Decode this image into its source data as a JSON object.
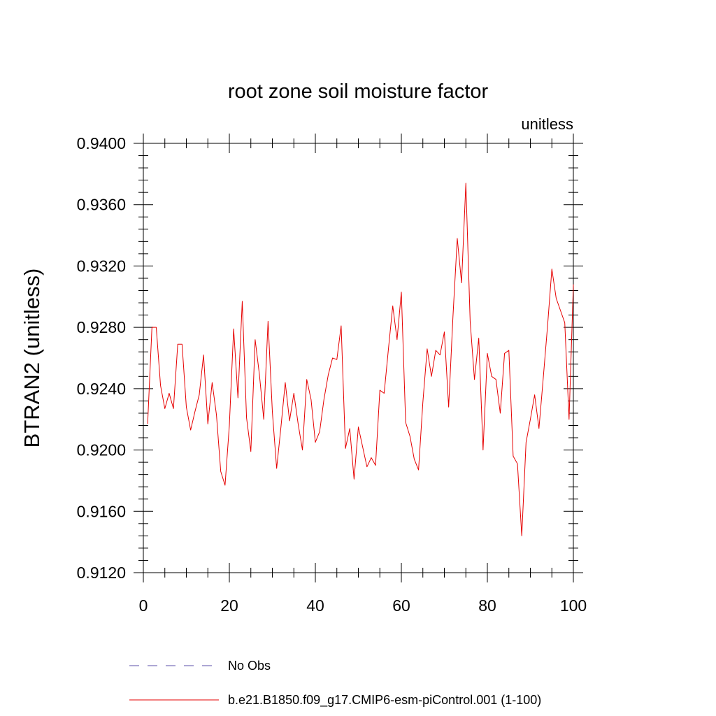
{
  "chart_data": {
    "type": "line",
    "title": "root zone soil moisture factor",
    "units_label": "unitless",
    "xlabel": "",
    "ylabel": "BTRAN2  (unitless)",
    "xlim": [
      0,
      100
    ],
    "ylim": [
      0.912,
      0.94
    ],
    "x_ticks": [
      0,
      20,
      40,
      60,
      80,
      100
    ],
    "x_tick_labels": [
      "0",
      "20",
      "40",
      "60",
      "80",
      "100"
    ],
    "y_ticks": [
      0.912,
      0.916,
      0.92,
      0.924,
      0.928,
      0.932,
      0.936,
      0.94
    ],
    "y_tick_labels": [
      "0.9120",
      "0.9160",
      "0.9200",
      "0.9240",
      "0.9280",
      "0.9320",
      "0.9360",
      "0.9400"
    ],
    "grid": false,
    "legend": [
      {
        "label": "No Obs",
        "color": "#5b4fa8",
        "style": "dashed"
      },
      {
        "label": "b.e21.B1850.f09_g17.CMIP6-esm-piControl.001 (1-100)",
        "color": "#e60000",
        "style": "solid"
      }
    ],
    "series": [
      {
        "name": "b.e21.B1850.f09_g17.CMIP6-esm-piControl.001 (1-100)",
        "color": "#e60000",
        "x": [
          1,
          2,
          3,
          4,
          5,
          6,
          7,
          8,
          9,
          10,
          11,
          12,
          13,
          14,
          15,
          16,
          17,
          18,
          19,
          20,
          21,
          22,
          23,
          24,
          25,
          26,
          27,
          28,
          29,
          30,
          31,
          32,
          33,
          34,
          35,
          36,
          37,
          38,
          39,
          40,
          41,
          42,
          43,
          44,
          45,
          46,
          47,
          48,
          49,
          50,
          51,
          52,
          53,
          54,
          55,
          56,
          57,
          58,
          59,
          60,
          61,
          62,
          63,
          64,
          65,
          66,
          67,
          68,
          69,
          70,
          71,
          72,
          73,
          74,
          75,
          76,
          77,
          78,
          79,
          80,
          81,
          82,
          83,
          84,
          85,
          86,
          87,
          88,
          89,
          90,
          91,
          92,
          93,
          94,
          95,
          96,
          97,
          98,
          99,
          100
        ],
        "values": [
          0.9217,
          0.928,
          0.928,
          0.9242,
          0.9227,
          0.9237,
          0.9227,
          0.9269,
          0.9269,
          0.9228,
          0.9213,
          0.9225,
          0.9236,
          0.9262,
          0.9217,
          0.9244,
          0.9223,
          0.9186,
          0.9177,
          0.9216,
          0.9279,
          0.9234,
          0.9297,
          0.9221,
          0.9199,
          0.9272,
          0.9249,
          0.922,
          0.9284,
          0.9225,
          0.9188,
          0.9215,
          0.9244,
          0.9219,
          0.9237,
          0.9217,
          0.92,
          0.9246,
          0.9233,
          0.9205,
          0.9212,
          0.9233,
          0.9249,
          0.926,
          0.9259,
          0.9281,
          0.9201,
          0.9214,
          0.9181,
          0.9215,
          0.9202,
          0.9189,
          0.9195,
          0.919,
          0.9239,
          0.9237,
          0.9266,
          0.9294,
          0.9272,
          0.9303,
          0.9218,
          0.9209,
          0.9194,
          0.9187,
          0.9231,
          0.9266,
          0.9248,
          0.9265,
          0.9262,
          0.9277,
          0.9228,
          0.9287,
          0.9338,
          0.9309,
          0.9374,
          0.9284,
          0.9246,
          0.9273,
          0.92,
          0.9263,
          0.9248,
          0.9246,
          0.9224,
          0.9263,
          0.9265,
          0.9196,
          0.9191,
          0.9144,
          0.9205,
          0.922,
          0.9236,
          0.9214,
          0.9247,
          0.9281,
          0.9318,
          0.9299,
          0.9291,
          0.9283,
          0.922,
          0.9308
        ]
      }
    ]
  }
}
